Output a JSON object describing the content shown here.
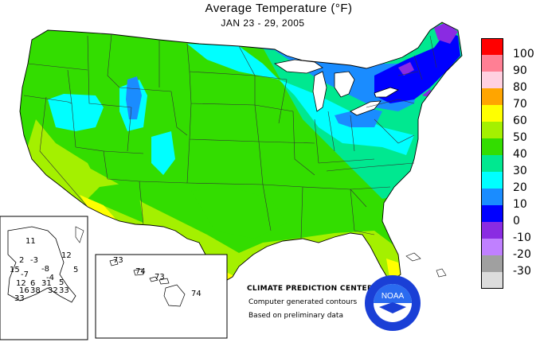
{
  "title": "Average Temperature (°F)",
  "subtitle": "JAN 23 - 29, 2005",
  "legend": {
    "entries": [
      {
        "label": "100",
        "color": "#ff0000"
      },
      {
        "label": "90",
        "color": "#ff7f94"
      },
      {
        "label": "80",
        "color": "#ffd0e0"
      },
      {
        "label": "70",
        "color": "#ffa500"
      },
      {
        "label": "60",
        "color": "#ffff00"
      },
      {
        "label": "50",
        "color": "#a4f000"
      },
      {
        "label": "40",
        "color": "#33dd00"
      },
      {
        "label": "30",
        "color": "#00e890"
      },
      {
        "label": "20",
        "color": "#00ffff"
      },
      {
        "label": "10",
        "color": "#1a8cff"
      },
      {
        "label": "0",
        "color": "#0000ff"
      },
      {
        "label": "-10",
        "color": "#8a2be2"
      },
      {
        "label": "-20",
        "color": "#c080ff"
      },
      {
        "label": "-30",
        "color": "#a0a0a0"
      },
      {
        "label": "",
        "color": "#dcdcdc"
      }
    ]
  },
  "credits": {
    "center": "CLIMATE PREDICTION CENTER, NOAA",
    "line1": "Computer generated contours",
    "line2": "Based on preliminary data"
  },
  "logo": {
    "text": "NOAA"
  },
  "alaska_values": [
    "11",
    "12",
    "2",
    "-3",
    "15",
    "-7",
    "-8",
    "-4",
    "5",
    "12",
    "6",
    "31",
    "5",
    "16",
    "38",
    "32",
    "33",
    "33"
  ],
  "hawaii_values": [
    "73",
    "74",
    "73",
    "74"
  ]
}
